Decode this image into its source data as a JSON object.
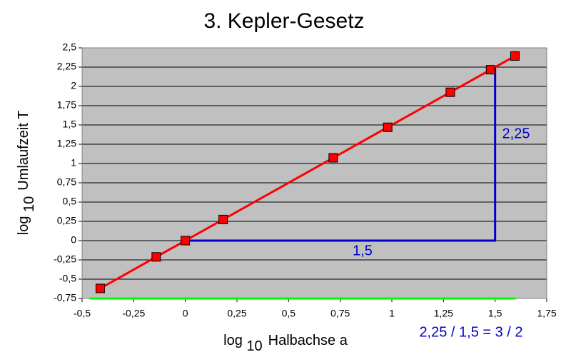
{
  "chart_data": {
    "type": "scatter",
    "title": "3. Kepler-Gesetz",
    "xlabel": [
      "log",
      "10",
      "Halbachse a"
    ],
    "ylabel": [
      "log",
      "10",
      "Umlaufzeit T"
    ],
    "xlim": [
      -0.5,
      1.75
    ],
    "ylim": [
      -0.75,
      2.5
    ],
    "xticks": [
      {
        "value": -0.5,
        "label": "-0,5"
      },
      {
        "value": -0.25,
        "label": "-0,25"
      },
      0,
      {
        "value": 0.25,
        "label": "0,25"
      },
      {
        "value": 0.5,
        "label": "0,5"
      },
      {
        "value": 0.75,
        "label": "0,75"
      },
      1,
      {
        "value": 1.25,
        "label": "1,25"
      },
      {
        "value": 1.5,
        "label": "1,5"
      },
      {
        "value": 1.75,
        "label": "1,75"
      }
    ],
    "yticks": [
      {
        "value": -0.75,
        "label": "-0,75"
      },
      {
        "value": -0.5,
        "label": "-0,5"
      },
      {
        "value": -0.25,
        "label": "-0,25"
      },
      0,
      {
        "value": 0.25,
        "label": "0,25"
      },
      {
        "value": 0.5,
        "label": "0,5"
      },
      {
        "value": 0.75,
        "label": "0,75"
      },
      1,
      {
        "value": 1.25,
        "label": "1,25"
      },
      {
        "value": 1.5,
        "label": "1,5"
      },
      {
        "value": 1.75,
        "label": "1,75"
      },
      2,
      {
        "value": 2.25,
        "label": "2,25"
      },
      {
        "value": 2.5,
        "label": "2,5"
      }
    ],
    "grid": true,
    "series": [
      {
        "color": "#ff0000",
        "markers": true,
        "x": [
          -0.412,
          -0.141,
          0,
          0.183,
          0.716,
          0.98,
          1.283,
          1.478,
          1.596
        ],
        "values": [
          -0.62,
          -0.211,
          0,
          0.274,
          1.074,
          1.47,
          1.924,
          2.216,
          2.394
        ]
      },
      {
        "color": "#00ff00",
        "markers": false,
        "x": [
          -0.465,
          1.6
        ],
        "values": [
          -0.75,
          -0.75
        ]
      },
      {
        "color": "#0000cc",
        "markers": false,
        "x": [
          0,
          1.5,
          1.5
        ],
        "values": [
          0,
          0,
          2.25
        ]
      }
    ],
    "annotations": [
      "1,5",
      "2,25",
      "2,25 / 1,5 = 3 / 2"
    ]
  }
}
